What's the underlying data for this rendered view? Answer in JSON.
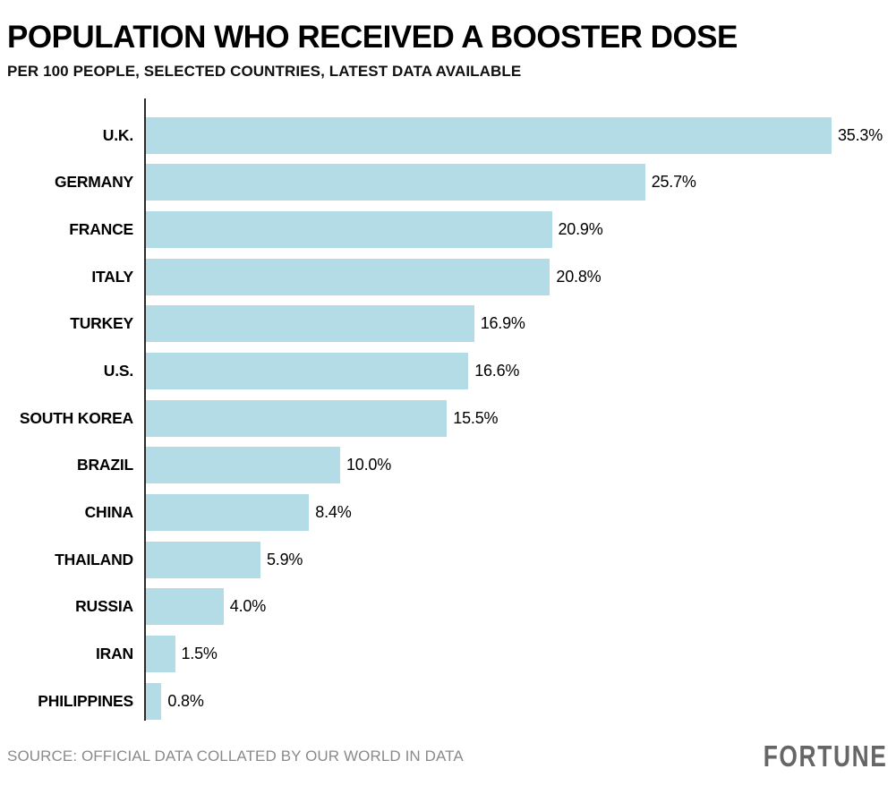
{
  "header": {
    "title": "POPULATION WHO RECEIVED A BOOSTER DOSE",
    "subtitle": "PER 100 PEOPLE, SELECTED COUNTRIES, LATEST DATA AVAILABLE"
  },
  "chart_data": {
    "type": "bar",
    "orientation": "horizontal",
    "title": "POPULATION WHO RECEIVED A BOOSTER DOSE",
    "subtitle": "PER 100 PEOPLE, SELECTED COUNTRIES, LATEST DATA AVAILABLE",
    "categories": [
      "U.K.",
      "GERMANY",
      "FRANCE",
      "ITALY",
      "TURKEY",
      "U.S.",
      "SOUTH KOREA",
      "BRAZIL",
      "CHINA",
      "THAILAND",
      "RUSSIA",
      "IRAN",
      "PHILIPPINES"
    ],
    "values": [
      35.3,
      25.7,
      20.9,
      20.8,
      16.9,
      16.6,
      15.5,
      10.0,
      8.4,
      5.9,
      4.0,
      1.5,
      0.8
    ],
    "value_labels": [
      "35.3%",
      "25.7%",
      "20.9%",
      "20.8%",
      "16.9%",
      "16.6%",
      "15.5%",
      "10.0%",
      "8.4%",
      "5.9%",
      "4.0%",
      "1.5%",
      "0.8%"
    ],
    "xlabel": "",
    "ylabel": "",
    "xlim": [
      0,
      38
    ],
    "grid": false,
    "legend": false,
    "data_labels": "outside-end"
  },
  "footer": {
    "source": "SOURCE: OFFICIAL DATA COLLATED BY OUR WORLD IN DATA",
    "brand": "FORTUNE"
  },
  "colors": {
    "bar": "#B3DCE6",
    "axis": "#2B2B2B",
    "title_text": "#000000",
    "label_text": "#000000",
    "source_text": "#8A8A8A",
    "brand_text": "#666666",
    "background": "#FFFFFF"
  }
}
